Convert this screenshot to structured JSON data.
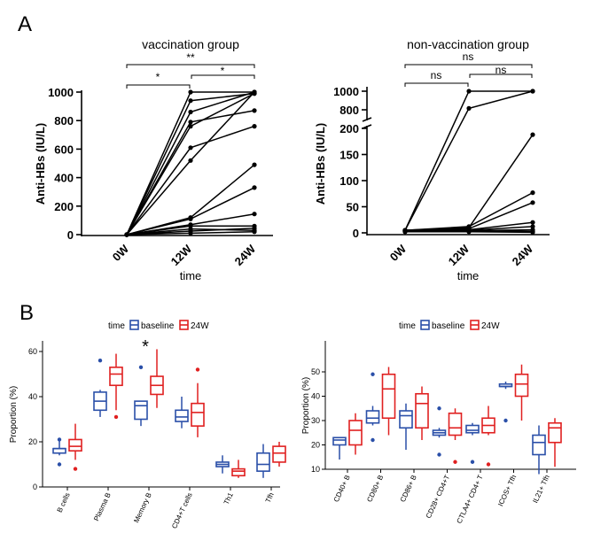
{
  "panel_labels": [
    "A",
    "B"
  ],
  "panelA": {
    "left": {
      "title": "vaccination group",
      "ylabel": "Anti-HBs (IU/L)",
      "xlabel": "time",
      "categories": [
        "0W",
        "12W",
        "24W"
      ],
      "yticks": [
        "0",
        "200",
        "400",
        "600",
        "800",
        "1000"
      ],
      "sig": {
        "top": "**",
        "left": "*",
        "right": "*"
      }
    },
    "right": {
      "title": "non-vaccination group",
      "ylabel": "Anti-HBs (IU/L)",
      "xlabel": "time",
      "categories": [
        "0W",
        "12W",
        "24W"
      ],
      "yticks_low": [
        "0",
        "50",
        "100",
        "150",
        "200"
      ],
      "yticks_high": [
        "800",
        "1000"
      ],
      "sig": {
        "top": "ns",
        "left": "ns",
        "right": "ns"
      }
    }
  },
  "panelB": {
    "legend": {
      "title": "time",
      "items": [
        "baseline",
        "24W"
      ]
    },
    "ylabel": "Proportion (%)",
    "star": "*",
    "colors": {
      "baseline": "#2a4fa8",
      "24W": "#e02020"
    }
  },
  "chart_data": [
    {
      "type": "line",
      "title": "vaccination group",
      "xlabel": "time",
      "ylabel": "Anti-HBs (IU/L)",
      "x": [
        "0W",
        "12W",
        "24W"
      ],
      "ylim": [
        0,
        1000
      ],
      "series": [
        {
          "values": [
            0,
            1000,
            1000
          ]
        },
        {
          "values": [
            0,
            940,
            990
          ]
        },
        {
          "values": [
            0,
            860,
            1000
          ]
        },
        {
          "values": [
            0,
            790,
            870
          ]
        },
        {
          "values": [
            0,
            760,
            990
          ]
        },
        {
          "values": [
            0,
            610,
            760
          ]
        },
        {
          "values": [
            0,
            520,
            1000
          ]
        },
        {
          "values": [
            0,
            120,
            490
          ]
        },
        {
          "values": [
            0,
            110,
            330
          ]
        },
        {
          "values": [
            0,
            70,
            145
          ]
        },
        {
          "values": [
            0,
            60,
            60
          ]
        },
        {
          "values": [
            0,
            40,
            30
          ]
        },
        {
          "values": [
            0,
            25,
            45
          ]
        },
        {
          "values": [
            0,
            10,
            20
          ]
        }
      ]
    },
    {
      "type": "line",
      "title": "non-vaccination group",
      "xlabel": "time",
      "ylabel": "Anti-HBs (IU/L)",
      "x": [
        "0W",
        "12W",
        "24W"
      ],
      "ylim": [
        0,
        1000
      ],
      "axis_break": [
        200,
        700
      ],
      "series": [
        {
          "values": [
            5,
            1000,
            1000
          ]
        },
        {
          "values": [
            5,
            815,
            1000
          ]
        },
        {
          "values": [
            5,
            10,
            188
          ]
        },
        {
          "values": [
            5,
            12,
            77
          ]
        },
        {
          "values": [
            5,
            8,
            58
          ]
        },
        {
          "values": [
            5,
            6,
            20
          ]
        },
        {
          "values": [
            5,
            5,
            12
          ]
        },
        {
          "values": [
            3,
            4,
            6
          ]
        },
        {
          "values": [
            2,
            3,
            3
          ]
        },
        {
          "values": [
            2,
            2,
            1
          ]
        }
      ]
    },
    {
      "type": "box",
      "ylabel": "Proportion (%)",
      "ylim": [
        0,
        60
      ],
      "yticks": [
        0,
        20,
        40,
        60
      ],
      "categories": [
        "B cells",
        "Plasma B",
        "Memory B",
        "CD4+T cells",
        "Th1",
        "Tfh"
      ],
      "series": [
        {
          "name": "baseline",
          "boxes": [
            [
              14,
              15,
              17,
              17,
              21
            ],
            [
              31,
              34,
              38,
              42,
              43
            ],
            [
              27,
              30,
              36,
              38,
              38
            ],
            [
              26,
              29,
              31,
              34,
              40
            ],
            [
              6,
              9,
              10,
              11,
              14
            ],
            [
              4,
              7,
              10,
              15,
              19
            ]
          ],
          "outliers": [
            [
              0,
              21
            ],
            [
              0,
              10
            ],
            [
              1,
              56
            ],
            [
              2,
              53
            ]
          ]
        },
        {
          "name": "24W",
          "boxes": [
            [
              12,
              16,
              18,
              21,
              28
            ],
            [
              34,
              45,
              50,
              53,
              59
            ],
            [
              35,
              41,
              45,
              49,
              61
            ],
            [
              22,
              27,
              33,
              37,
              46
            ],
            [
              4,
              5,
              7,
              8,
              12
            ],
            [
              9,
              11,
              15,
              18,
              20
            ]
          ],
          "outliers": [
            [
              0,
              8
            ],
            [
              1,
              31
            ],
            [
              3,
              52
            ]
          ]
        }
      ]
    },
    {
      "type": "box",
      "ylabel": "Proportion (%)",
      "ylim": [
        10,
        52
      ],
      "yticks": [
        10,
        20,
        30,
        40,
        50
      ],
      "categories": [
        "CD40+ B",
        "CD80+ B",
        "CD86+ B",
        "CD28+ CD4+T",
        "CTLA4+ CD4+ T",
        "ICOS+ Tfh",
        "IL21+ Tfh"
      ],
      "series": [
        {
          "name": "baseline",
          "boxes": [
            [
              14,
              20,
              22,
              23,
              23
            ],
            [
              28,
              29,
              31,
              34,
              36
            ],
            [
              18,
              27,
              32,
              34,
              37
            ],
            [
              23,
              24,
              25,
              26,
              27
            ],
            [
              24,
              25,
              26,
              28,
              29
            ],
            [
              43,
              44,
              44,
              45,
              46
            ],
            [
              8,
              16,
              21,
              24,
              28
            ]
          ],
          "outliers": [
            [
              1,
              49
            ],
            [
              1,
              22
            ],
            [
              3,
              35
            ],
            [
              3,
              16
            ],
            [
              4,
              13
            ],
            [
              5,
              30
            ]
          ]
        },
        {
          "name": "24W",
          "boxes": [
            [
              16,
              20,
              26,
              30,
              33
            ],
            [
              24,
              31,
              43,
              49,
              52
            ],
            [
              22,
              27,
              37,
              41,
              44
            ],
            [
              22,
              24,
              27,
              33,
              35
            ],
            [
              24,
              25,
              28,
              31,
              36
            ],
            [
              30,
              40,
              45,
              49,
              53
            ],
            [
              11,
              21,
              27,
              29,
              31
            ]
          ],
          "outliers": [
            [
              3,
              13
            ],
            [
              4,
              12
            ]
          ]
        }
      ]
    }
  ]
}
